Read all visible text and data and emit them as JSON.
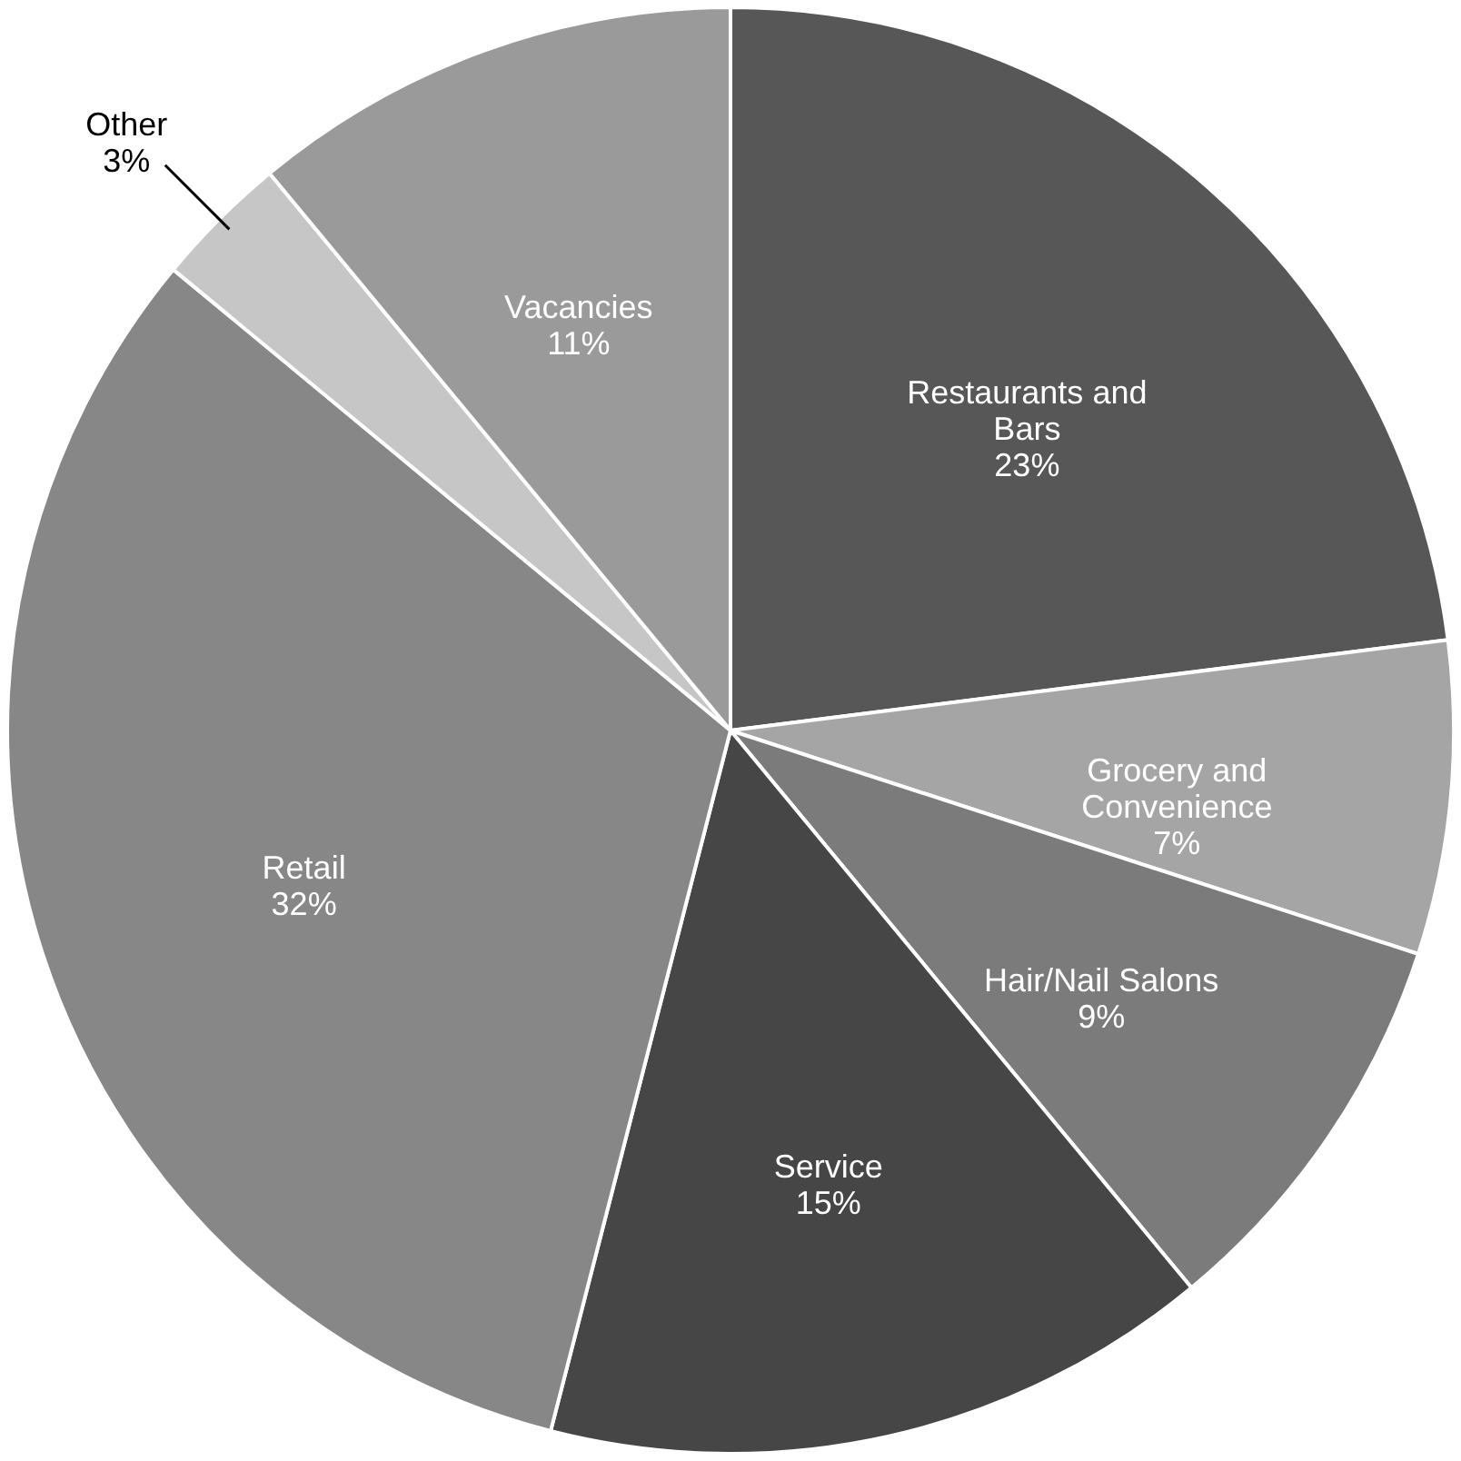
{
  "chart_data": {
    "type": "pie",
    "categories": [
      "Restaurants and Bars",
      "Grocery and Convenience",
      "Hair/Nail Salons",
      "Service",
      "Retail",
      "Other",
      "Vacancies"
    ],
    "values": [
      23,
      7,
      9,
      15,
      32,
      3,
      11
    ],
    "value_labels": [
      "23%",
      "7%",
      "9%",
      "15%",
      "32%",
      "3%",
      "11%"
    ],
    "colors": [
      "#575757",
      "#a5a5a5",
      "#7b7b7b",
      "#464646",
      "#878787",
      "#c6c6c6",
      "#9a9a9a"
    ]
  }
}
